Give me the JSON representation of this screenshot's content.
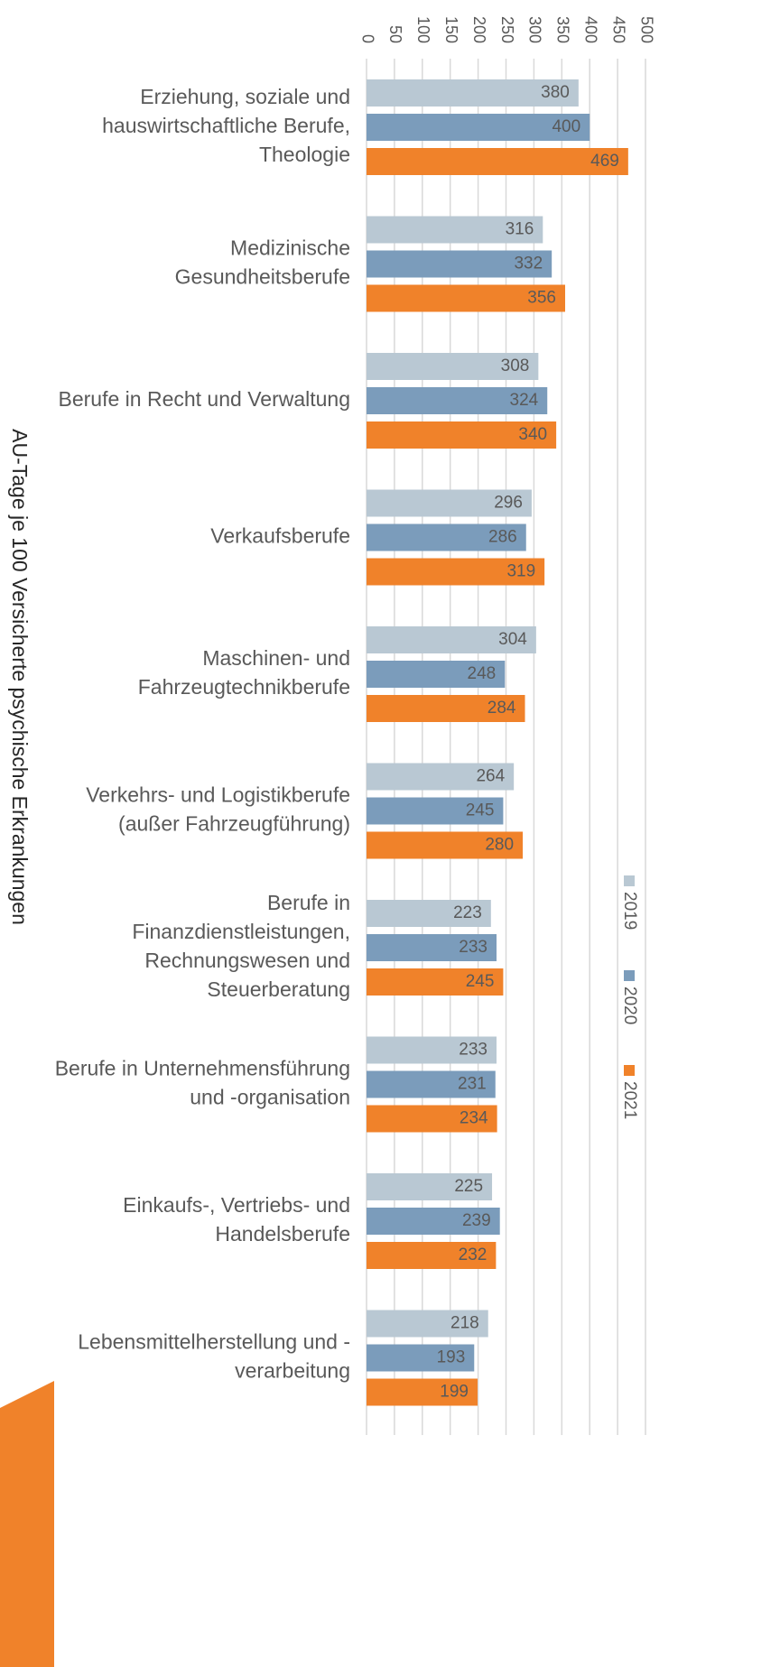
{
  "chart_data": {
    "type": "bar",
    "orientation": "horizontal",
    "y_axis_label": "AU-Tage je 100 Versicherte psychische Erkrankungen",
    "categories": [
      [
        "Erziehung, soziale und",
        "hauswirtschaftliche Berufe,",
        "Theologie"
      ],
      [
        "Medizinische",
        "Gesundheitsberufe"
      ],
      [
        "Berufe in Recht und Verwaltung"
      ],
      [
        "Verkaufsberufe"
      ],
      [
        "Maschinen- und",
        "Fahrzeugtechnikberufe"
      ],
      [
        "Verkehrs- und Logistikberufe",
        "(außer Fahrzeugführung)"
      ],
      [
        "Berufe in",
        "Finanzdienstleistungen,",
        "Rechnungswesen und",
        "Steuerberatung"
      ],
      [
        "Berufe in Unternehmensführung",
        "und -organisation"
      ],
      [
        "Einkaufs-, Vertriebs- und",
        "Handelsberufe"
      ],
      [
        "Lebensmittelherstellung und -",
        "verarbeitung"
      ]
    ],
    "series": [
      {
        "name": "2019",
        "color": "#b9c8d3",
        "values": [
          380,
          316,
          308,
          296,
          304,
          264,
          223,
          233,
          225,
          218
        ]
      },
      {
        "name": "2020",
        "color": "#7b9cbb",
        "values": [
          400,
          332,
          324,
          286,
          248,
          245,
          233,
          231,
          239,
          193
        ]
      },
      {
        "name": "2021",
        "color": "#f0822a",
        "values": [
          469,
          356,
          340,
          319,
          284,
          280,
          245,
          234,
          232,
          199
        ]
      }
    ],
    "xlim": [
      0,
      500
    ],
    "xticks": [
      0,
      50,
      100,
      150,
      200,
      250,
      300,
      350,
      400,
      450,
      500
    ],
    "grid": true,
    "legend": "right"
  }
}
